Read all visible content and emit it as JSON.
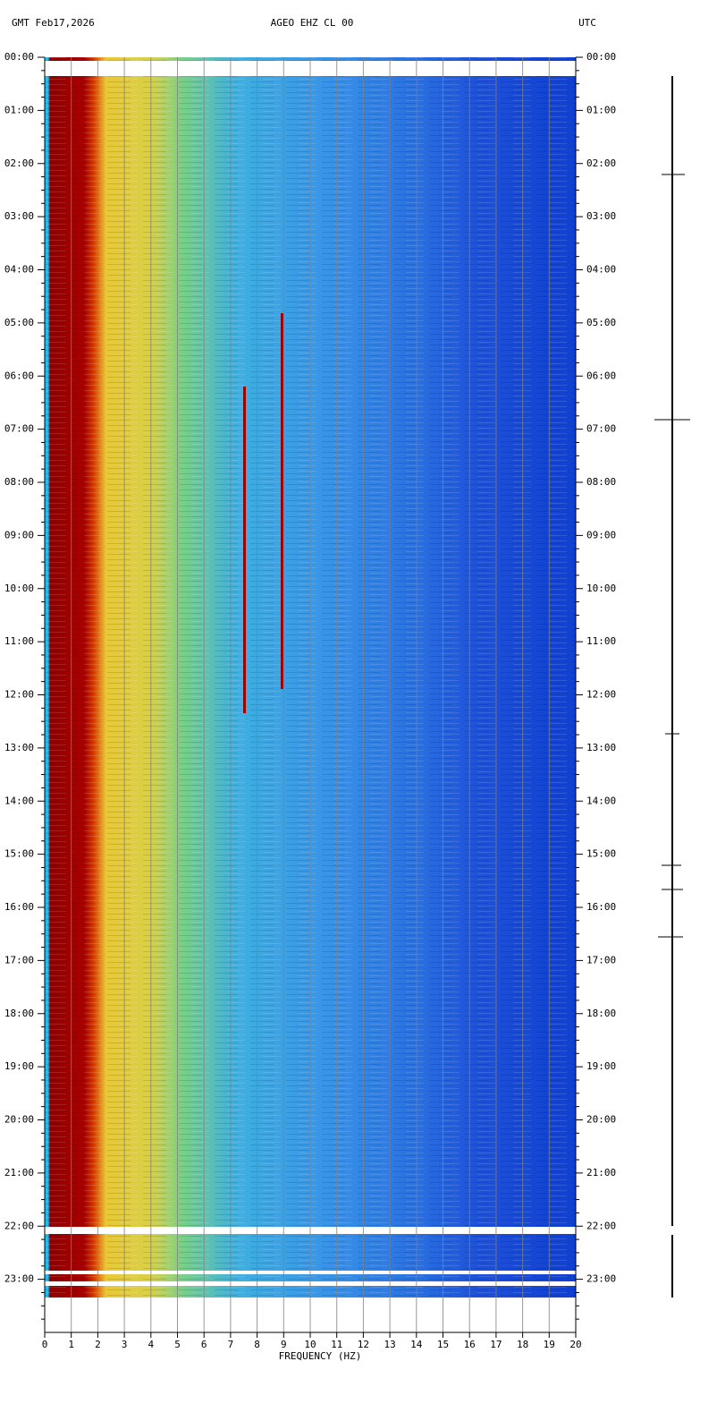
{
  "chart_data": {
    "type": "spectrogram",
    "title": "AGEO EHZ CL 00",
    "date_label": "GMT  Feb17,2026",
    "timezone_label": "UTC",
    "x_label": "FREQUENCY (HZ)",
    "xlim": [
      0,
      20
    ],
    "xticks": [
      0,
      1,
      2,
      3,
      4,
      5,
      6,
      7,
      8,
      9,
      10,
      11,
      12,
      13,
      14,
      15,
      16,
      17,
      18,
      19,
      20
    ],
    "ylim": [
      0,
      24
    ],
    "y_reversed": true,
    "yticks": [
      {
        "value": 0,
        "label": "00:00"
      },
      {
        "value": 1,
        "label": "01:00"
      },
      {
        "value": 2,
        "label": "02:00"
      },
      {
        "value": 3,
        "label": "03:00"
      },
      {
        "value": 4,
        "label": "04:00"
      },
      {
        "value": 5,
        "label": "05:00"
      },
      {
        "value": 6,
        "label": "06:00"
      },
      {
        "value": 7,
        "label": "07:00"
      },
      {
        "value": 8,
        "label": "08:00"
      },
      {
        "value": 9,
        "label": "09:00"
      },
      {
        "value": 10,
        "label": "10:00"
      },
      {
        "value": 11,
        "label": "11:00"
      },
      {
        "value": 12,
        "label": "12:00"
      },
      {
        "value": 13,
        "label": "13:00"
      },
      {
        "value": 14,
        "label": "14:00"
      },
      {
        "value": 15,
        "label": "15:00"
      },
      {
        "value": 16,
        "label": "16:00"
      },
      {
        "value": 17,
        "label": "17:00"
      },
      {
        "value": 18,
        "label": "18:00"
      },
      {
        "value": 19,
        "label": "19:00"
      },
      {
        "value": 20,
        "label": "20:00"
      },
      {
        "value": 21,
        "label": "21:00"
      },
      {
        "value": 22,
        "label": "22:00"
      },
      {
        "value": 23,
        "label": "23:00"
      }
    ],
    "grid": true
  }
}
